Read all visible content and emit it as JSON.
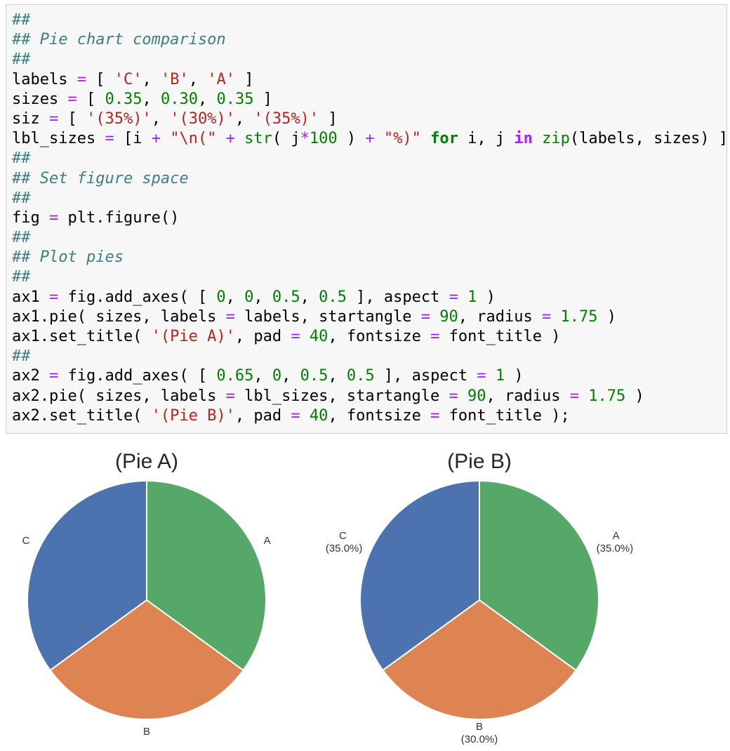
{
  "code_cell": {
    "lines": [
      [
        {
          "t": "##",
          "c": "c"
        }
      ],
      [
        {
          "t": "## Pie chart comparison",
          "c": "c"
        }
      ],
      [
        {
          "t": "##",
          "c": "c"
        }
      ],
      [
        {
          "t": "labels "
        },
        {
          "t": "=",
          "c": "o"
        },
        {
          "t": " [ "
        },
        {
          "t": "'C'",
          "c": "s"
        },
        {
          "t": ", "
        },
        {
          "t": "'B'",
          "c": "s"
        },
        {
          "t": ", "
        },
        {
          "t": "'A'",
          "c": "s"
        },
        {
          "t": " ]"
        }
      ],
      [
        {
          "t": "sizes "
        },
        {
          "t": "=",
          "c": "o"
        },
        {
          "t": " [ "
        },
        {
          "t": "0.35",
          "c": "n"
        },
        {
          "t": ", "
        },
        {
          "t": "0.30",
          "c": "n"
        },
        {
          "t": ", "
        },
        {
          "t": "0.35",
          "c": "n"
        },
        {
          "t": " ]"
        }
      ],
      [
        {
          "t": "siz "
        },
        {
          "t": "=",
          "c": "o"
        },
        {
          "t": " [ "
        },
        {
          "t": "'(35%)'",
          "c": "s"
        },
        {
          "t": ", "
        },
        {
          "t": "'(30%)'",
          "c": "s"
        },
        {
          "t": ", "
        },
        {
          "t": "'(35%)'",
          "c": "s"
        },
        {
          "t": " ]"
        }
      ],
      [
        {
          "t": "lbl_sizes "
        },
        {
          "t": "=",
          "c": "o"
        },
        {
          "t": " [i "
        },
        {
          "t": "+",
          "c": "o"
        },
        {
          "t": " "
        },
        {
          "t": "\"\\n(\"",
          "c": "s"
        },
        {
          "t": " "
        },
        {
          "t": "+",
          "c": "o"
        },
        {
          "t": " "
        },
        {
          "t": "str",
          "c": "b"
        },
        {
          "t": "( j"
        },
        {
          "t": "*",
          "c": "o"
        },
        {
          "t": "100",
          "c": "n"
        },
        {
          "t": " ) "
        },
        {
          "t": "+",
          "c": "o"
        },
        {
          "t": " "
        },
        {
          "t": "\"%)\"",
          "c": "s"
        },
        {
          "t": " "
        },
        {
          "t": "for",
          "c": "k"
        },
        {
          "t": " i, j "
        },
        {
          "t": "in",
          "c": "ow"
        },
        {
          "t": " "
        },
        {
          "t": "zip",
          "c": "b"
        },
        {
          "t": "(labels, sizes) ]"
        }
      ],
      [
        {
          "t": "##",
          "c": "c"
        }
      ],
      [
        {
          "t": "## Set figure space",
          "c": "c"
        }
      ],
      [
        {
          "t": "##",
          "c": "c"
        }
      ],
      [
        {
          "t": "fig "
        },
        {
          "t": "=",
          "c": "o"
        },
        {
          "t": " plt.figure()"
        }
      ],
      [
        {
          "t": "##",
          "c": "c"
        }
      ],
      [
        {
          "t": "## Plot pies",
          "c": "c"
        }
      ],
      [
        {
          "t": "##",
          "c": "c"
        }
      ],
      [
        {
          "t": "ax1 "
        },
        {
          "t": "=",
          "c": "o"
        },
        {
          "t": " fig.add_axes( [ "
        },
        {
          "t": "0",
          "c": "n"
        },
        {
          "t": ", "
        },
        {
          "t": "0",
          "c": "n"
        },
        {
          "t": ", "
        },
        {
          "t": "0.5",
          "c": "n"
        },
        {
          "t": ", "
        },
        {
          "t": "0.5",
          "c": "n"
        },
        {
          "t": " ], aspect "
        },
        {
          "t": "=",
          "c": "o"
        },
        {
          "t": " "
        },
        {
          "t": "1",
          "c": "n"
        },
        {
          "t": " )"
        }
      ],
      [
        {
          "t": "ax1.pie( sizes, labels "
        },
        {
          "t": "=",
          "c": "o"
        },
        {
          "t": " labels, startangle "
        },
        {
          "t": "=",
          "c": "o"
        },
        {
          "t": " "
        },
        {
          "t": "90",
          "c": "n"
        },
        {
          "t": ", radius "
        },
        {
          "t": "=",
          "c": "o"
        },
        {
          "t": " "
        },
        {
          "t": "1.75",
          "c": "n"
        },
        {
          "t": " )"
        }
      ],
      [
        {
          "t": "ax1.set_title( "
        },
        {
          "t": "'(Pie A)'",
          "c": "s"
        },
        {
          "t": ", pad "
        },
        {
          "t": "=",
          "c": "o"
        },
        {
          "t": " "
        },
        {
          "t": "40",
          "c": "n"
        },
        {
          "t": ", fontsize "
        },
        {
          "t": "=",
          "c": "o"
        },
        {
          "t": " font_title )"
        }
      ],
      [
        {
          "t": "##",
          "c": "c"
        }
      ],
      [
        {
          "t": "ax2 "
        },
        {
          "t": "=",
          "c": "o"
        },
        {
          "t": " fig.add_axes( [ "
        },
        {
          "t": "0.65",
          "c": "n"
        },
        {
          "t": ", "
        },
        {
          "t": "0",
          "c": "n"
        },
        {
          "t": ", "
        },
        {
          "t": "0.5",
          "c": "n"
        },
        {
          "t": ", "
        },
        {
          "t": "0.5",
          "c": "n"
        },
        {
          "t": " ], aspect "
        },
        {
          "t": "=",
          "c": "o"
        },
        {
          "t": " "
        },
        {
          "t": "1",
          "c": "n"
        },
        {
          "t": " )"
        }
      ],
      [
        {
          "t": "ax2.pie( sizes, labels "
        },
        {
          "t": "=",
          "c": "o"
        },
        {
          "t": " lbl_sizes, startangle "
        },
        {
          "t": "=",
          "c": "o"
        },
        {
          "t": " "
        },
        {
          "t": "90",
          "c": "n"
        },
        {
          "t": ", radius "
        },
        {
          "t": "=",
          "c": "o"
        },
        {
          "t": " "
        },
        {
          "t": "1.75",
          "c": "n"
        },
        {
          "t": " )"
        }
      ],
      [
        {
          "t": "ax2.set_title( "
        },
        {
          "t": "'(Pie B)'",
          "c": "s"
        },
        {
          "t": ", pad "
        },
        {
          "t": "=",
          "c": "o"
        },
        {
          "t": " "
        },
        {
          "t": "40",
          "c": "n"
        },
        {
          "t": ", fontsize "
        },
        {
          "t": "=",
          "c": "o"
        },
        {
          "t": " font_title );"
        }
      ]
    ]
  },
  "chart_data": [
    {
      "type": "pie",
      "title": "(Pie A)",
      "start_angle_deg": 90,
      "direction": "counterclockwise",
      "slices": [
        {
          "label": "C",
          "value": 0.35,
          "color": "#4c72b0"
        },
        {
          "label": "B",
          "value": 0.3,
          "color": "#dd8452"
        },
        {
          "label": "A",
          "value": 0.35,
          "color": "#55a868"
        }
      ]
    },
    {
      "type": "pie",
      "title": "(Pie B)",
      "start_angle_deg": 90,
      "direction": "counterclockwise",
      "slices": [
        {
          "label": "C",
          "sublabel": "(35.0%)",
          "value": 0.35,
          "color": "#4c72b0"
        },
        {
          "label": "B",
          "sublabel": "(30.0%)",
          "value": 0.3,
          "color": "#dd8452"
        },
        {
          "label": "A",
          "sublabel": "(35.0%)",
          "value": 0.35,
          "color": "#55a868"
        }
      ]
    }
  ]
}
